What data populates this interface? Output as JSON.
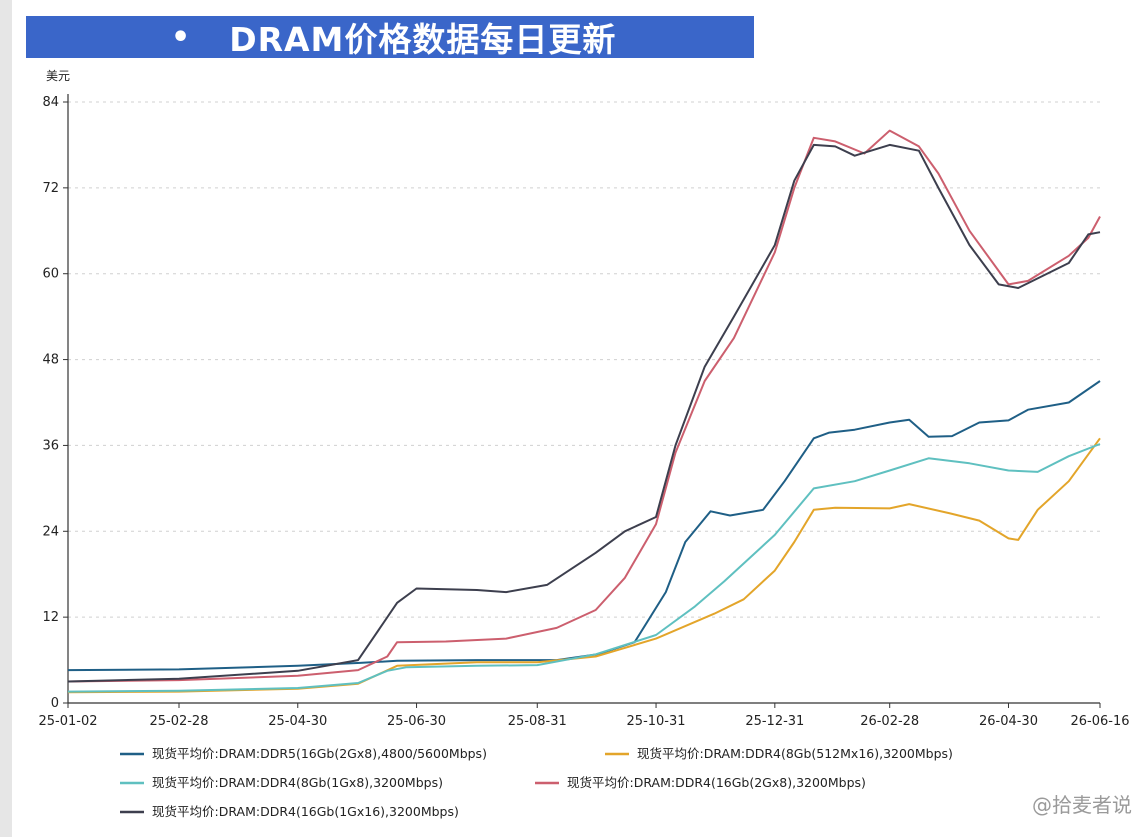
{
  "title": "DRAM价格数据每日更新",
  "watermark": "@拾麦者说",
  "chart_data": {
    "type": "line",
    "y_unit": "美元",
    "ylim": [
      0,
      84
    ],
    "yticks": [
      0,
      12,
      24,
      36,
      48,
      60,
      72,
      84
    ],
    "xlim": [
      "25-01-02",
      "26-06-16"
    ],
    "xticks": [
      "25-01-02",
      "25-02-28",
      "25-04-30",
      "25-06-30",
      "25-08-31",
      "25-10-31",
      "25-12-31",
      "26-02-28",
      "26-04-30",
      "26-06-16"
    ],
    "grid": "horizontal dashed",
    "legend_position": "bottom",
    "series": [
      {
        "name": "现货平均价:DRAM:DDR5(16Gb(2Gx8),4800/5600Mbps)",
        "color": "#1f5f86",
        "points": [
          [
            "25-01-02",
            4.6
          ],
          [
            "25-02-28",
            4.7
          ],
          [
            "25-04-30",
            5.2
          ],
          [
            "25-06-01",
            5.6
          ],
          [
            "25-06-20",
            5.9
          ],
          [
            "25-07-31",
            6.0
          ],
          [
            "25-09-10",
            6.0
          ],
          [
            "25-10-01",
            6.8
          ],
          [
            "25-10-20",
            8.5
          ],
          [
            "25-11-05",
            15.5
          ],
          [
            "25-11-15",
            22.5
          ],
          [
            "25-11-28",
            26.8
          ],
          [
            "25-12-08",
            26.2
          ],
          [
            "25-12-25",
            27.0
          ],
          [
            "26-01-05",
            31.0
          ],
          [
            "26-01-20",
            37.0
          ],
          [
            "26-01-28",
            37.8
          ],
          [
            "26-02-10",
            38.2
          ],
          [
            "26-02-28",
            39.2
          ],
          [
            "26-03-10",
            39.6
          ],
          [
            "26-03-20",
            37.2
          ],
          [
            "26-04-01",
            37.3
          ],
          [
            "26-04-15",
            39.2
          ],
          [
            "26-04-30",
            39.5
          ],
          [
            "26-05-10",
            41.0
          ],
          [
            "26-05-31",
            42.0
          ],
          [
            "26-06-16",
            45.0
          ]
        ]
      },
      {
        "name": "现货平均价:DRAM:DDR4(8Gb(512Mx16),3200Mbps)",
        "color": "#e3a52a",
        "points": [
          [
            "25-01-02",
            1.5
          ],
          [
            "25-02-28",
            1.6
          ],
          [
            "25-04-30",
            2.0
          ],
          [
            "25-05-31",
            2.7
          ],
          [
            "25-06-20",
            5.2
          ],
          [
            "25-07-31",
            5.7
          ],
          [
            "25-08-31",
            5.7
          ],
          [
            "25-09-30",
            6.5
          ],
          [
            "25-10-31",
            9.0
          ],
          [
            "25-11-30",
            12.5
          ],
          [
            "25-12-15",
            14.5
          ],
          [
            "25-12-31",
            18.5
          ],
          [
            "26-01-10",
            22.5
          ],
          [
            "26-01-20",
            27.0
          ],
          [
            "26-01-31",
            27.3
          ],
          [
            "26-02-28",
            27.2
          ],
          [
            "26-03-10",
            27.8
          ],
          [
            "26-03-31",
            26.5
          ],
          [
            "26-04-15",
            25.5
          ],
          [
            "26-04-30",
            23.0
          ],
          [
            "26-05-05",
            22.8
          ],
          [
            "26-05-15",
            27.0
          ],
          [
            "26-05-31",
            31.0
          ],
          [
            "26-06-16",
            37.0
          ]
        ]
      },
      {
        "name": "现货平均价:DRAM:DDR4(8Gb(1Gx8),3200Mbps)",
        "color": "#5fc0c0",
        "points": [
          [
            "25-01-02",
            1.6
          ],
          [
            "25-02-28",
            1.7
          ],
          [
            "25-04-30",
            2.1
          ],
          [
            "25-05-31",
            2.8
          ],
          [
            "25-06-15",
            4.5
          ],
          [
            "25-06-25",
            5.0
          ],
          [
            "25-07-31",
            5.2
          ],
          [
            "25-08-31",
            5.3
          ],
          [
            "25-09-30",
            6.8
          ],
          [
            "25-10-31",
            9.5
          ],
          [
            "25-11-20",
            13.5
          ],
          [
            "25-12-05",
            17.0
          ],
          [
            "25-12-31",
            23.5
          ],
          [
            "26-01-20",
            30.0
          ],
          [
            "26-02-10",
            31.0
          ],
          [
            "26-02-28",
            32.5
          ],
          [
            "26-03-20",
            34.2
          ],
          [
            "26-04-10",
            33.5
          ],
          [
            "26-04-30",
            32.5
          ],
          [
            "26-05-15",
            32.3
          ],
          [
            "26-05-31",
            34.5
          ],
          [
            "26-06-16",
            36.2
          ]
        ]
      },
      {
        "name": "现货平均价:DRAM:DDR4(16Gb(2Gx8),3200Mbps)",
        "color": "#cc5f6e",
        "points": [
          [
            "25-01-02",
            3.0
          ],
          [
            "25-02-28",
            3.2
          ],
          [
            "25-04-30",
            3.8
          ],
          [
            "25-05-31",
            4.6
          ],
          [
            "25-06-15",
            6.5
          ],
          [
            "25-06-20",
            8.5
          ],
          [
            "25-07-15",
            8.6
          ],
          [
            "25-08-15",
            9.0
          ],
          [
            "25-09-10",
            10.5
          ],
          [
            "25-09-30",
            13.0
          ],
          [
            "25-10-15",
            17.5
          ],
          [
            "25-10-31",
            25.0
          ],
          [
            "25-11-10",
            35.0
          ],
          [
            "25-11-25",
            45.0
          ],
          [
            "25-12-10",
            51.0
          ],
          [
            "25-12-31",
            63.0
          ],
          [
            "26-01-10",
            72.0
          ],
          [
            "26-01-20",
            79.0
          ],
          [
            "26-01-31",
            78.5
          ],
          [
            "26-02-15",
            76.8
          ],
          [
            "26-02-28",
            80.0
          ],
          [
            "26-03-15",
            77.8
          ],
          [
            "26-03-25",
            74.0
          ],
          [
            "26-04-10",
            66.0
          ],
          [
            "26-04-30",
            58.5
          ],
          [
            "26-05-10",
            59.0
          ],
          [
            "26-05-31",
            62.5
          ],
          [
            "26-06-10",
            65.0
          ],
          [
            "26-06-16",
            68.0
          ]
        ]
      },
      {
        "name": "现货平均价:DRAM:DDR4(16Gb(1Gx16),3200Mbps)",
        "color": "#3d3f4e",
        "points": [
          [
            "25-01-02",
            3.0
          ],
          [
            "25-02-28",
            3.4
          ],
          [
            "25-04-30",
            4.5
          ],
          [
            "25-05-31",
            6.0
          ],
          [
            "25-06-10",
            10.0
          ],
          [
            "25-06-20",
            14.0
          ],
          [
            "25-06-30",
            16.0
          ],
          [
            "25-07-31",
            15.8
          ],
          [
            "25-08-15",
            15.5
          ],
          [
            "25-09-05",
            16.5
          ],
          [
            "25-09-30",
            21.0
          ],
          [
            "25-10-15",
            24.0
          ],
          [
            "25-10-31",
            26.0
          ],
          [
            "25-11-10",
            36.0
          ],
          [
            "25-11-25",
            47.0
          ],
          [
            "25-12-10",
            54.0
          ],
          [
            "25-12-31",
            64.0
          ],
          [
            "26-01-10",
            73.0
          ],
          [
            "26-01-20",
            78.0
          ],
          [
            "26-01-31",
            77.8
          ],
          [
            "26-02-10",
            76.5
          ],
          [
            "26-02-28",
            78.0
          ],
          [
            "26-03-15",
            77.2
          ],
          [
            "26-03-25",
            72.0
          ],
          [
            "26-04-10",
            64.0
          ],
          [
            "26-04-25",
            58.5
          ],
          [
            "26-05-05",
            58.0
          ],
          [
            "26-05-31",
            61.5
          ],
          [
            "26-06-10",
            65.5
          ],
          [
            "26-06-16",
            65.8
          ]
        ]
      }
    ]
  }
}
